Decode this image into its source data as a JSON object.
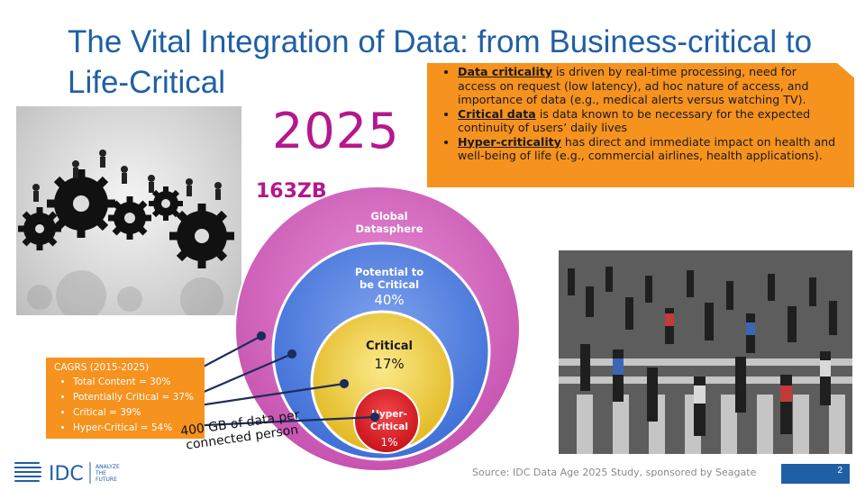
{
  "title": "The Vital Integration of Data: from Business-critical to Life-Critical",
  "year": "2025",
  "total_size": "163ZB",
  "note": [
    {
      "term": "Data criticality",
      "text": " is driven by real-time processing, need for access on request (low latency), ad hoc nature of access, and importance of data (e.g., medical alerts versus watching TV)."
    },
    {
      "term": "Critical data",
      "text": " is data known to be necessary for the expected continuity of users’ daily lives"
    },
    {
      "term": "Hyper-criticality",
      "text": " has direct and immediate impact on health and well-being of life (e.g., commercial airlines, health applications)."
    }
  ],
  "circles": {
    "global": {
      "label1": "Global",
      "label2": "Datasphere",
      "color": "#d86ac2"
    },
    "potential": {
      "label1": "Potential to",
      "label2": "be Critical",
      "pct": "40%",
      "color": "#5b86e0"
    },
    "critical": {
      "label": "Critical",
      "pct": "17%",
      "color": "#f1cf3a"
    },
    "hyper": {
      "label1": "Hyper-",
      "label2": "Critical",
      "pct": "1%",
      "color": "#e21f26"
    }
  },
  "cagrs": {
    "heading": "CAGRS (2015-2025)",
    "items": [
      "Total Content = 30%",
      "Potentially Critical = 37%",
      "Critical = 39%",
      "Hyper-Critical = 54%"
    ]
  },
  "per_person": {
    "line1": "400 GB of data per",
    "line2": "connected person"
  },
  "logo": {
    "text": "IDC",
    "tag1": "ANALYZE",
    "tag2": "THE",
    "tag3": "FUTURE"
  },
  "source": "Source: IDC Data Age 2025 Study, sponsored by Seagate",
  "page_number": "2"
}
